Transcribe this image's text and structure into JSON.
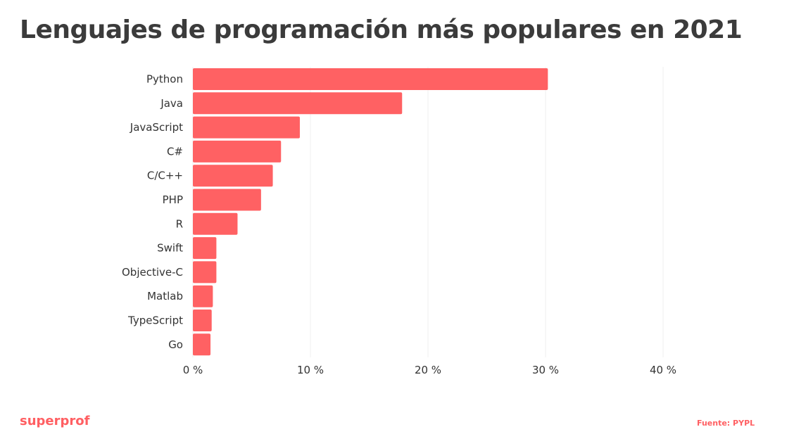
{
  "chart_data": {
    "type": "bar",
    "orientation": "horizontal",
    "title": "Lenguajes de programación más populares en 2021",
    "categories": [
      "Python",
      "Java",
      "JavaScript",
      "C#",
      "C/C++",
      "PHP",
      "R",
      "Swift",
      "Objective-C",
      "Matlab",
      "TypeScript",
      "Go"
    ],
    "values": [
      30.2,
      17.8,
      9.1,
      7.5,
      6.8,
      5.8,
      3.8,
      2.0,
      2.0,
      1.7,
      1.6,
      1.5
    ],
    "xlim": [
      0,
      40
    ],
    "xticks": [
      0,
      10,
      20,
      30,
      40
    ],
    "xtick_labels": [
      "0 %",
      "10 %",
      "20 %",
      "30 %",
      "40 %"
    ],
    "xlabel": "",
    "ylabel": "",
    "grid": true,
    "bar_color": "#ff6163"
  },
  "brand": "superprof",
  "source": "Fuente: PYPL"
}
